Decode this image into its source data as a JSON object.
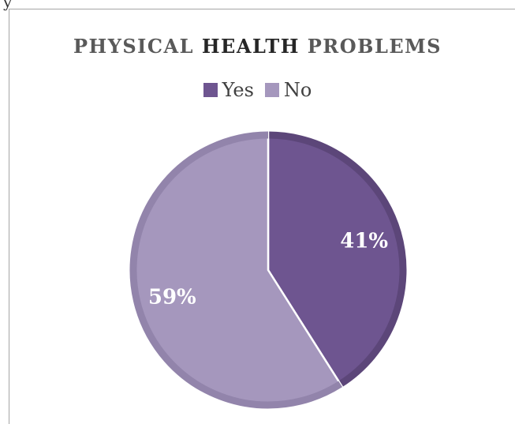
{
  "top_fragment": "y",
  "colors": {
    "yes": "#6e5590",
    "no": "#a597bd",
    "yes_edge": "#5c4679",
    "no_edge": "#9284ab"
  },
  "chart_data": {
    "type": "pie",
    "title_parts": [
      {
        "text": "PHYSICAL ",
        "emphasis": false
      },
      {
        "text": "HEALTH",
        "emphasis": true
      },
      {
        "text": " PROBLEMS",
        "emphasis": false
      }
    ],
    "legend_placement": "top",
    "slices": [
      {
        "label": "Yes",
        "value": 41,
        "data_label": "41%"
      },
      {
        "label": "No",
        "value": 59,
        "data_label": "59%"
      }
    ]
  }
}
